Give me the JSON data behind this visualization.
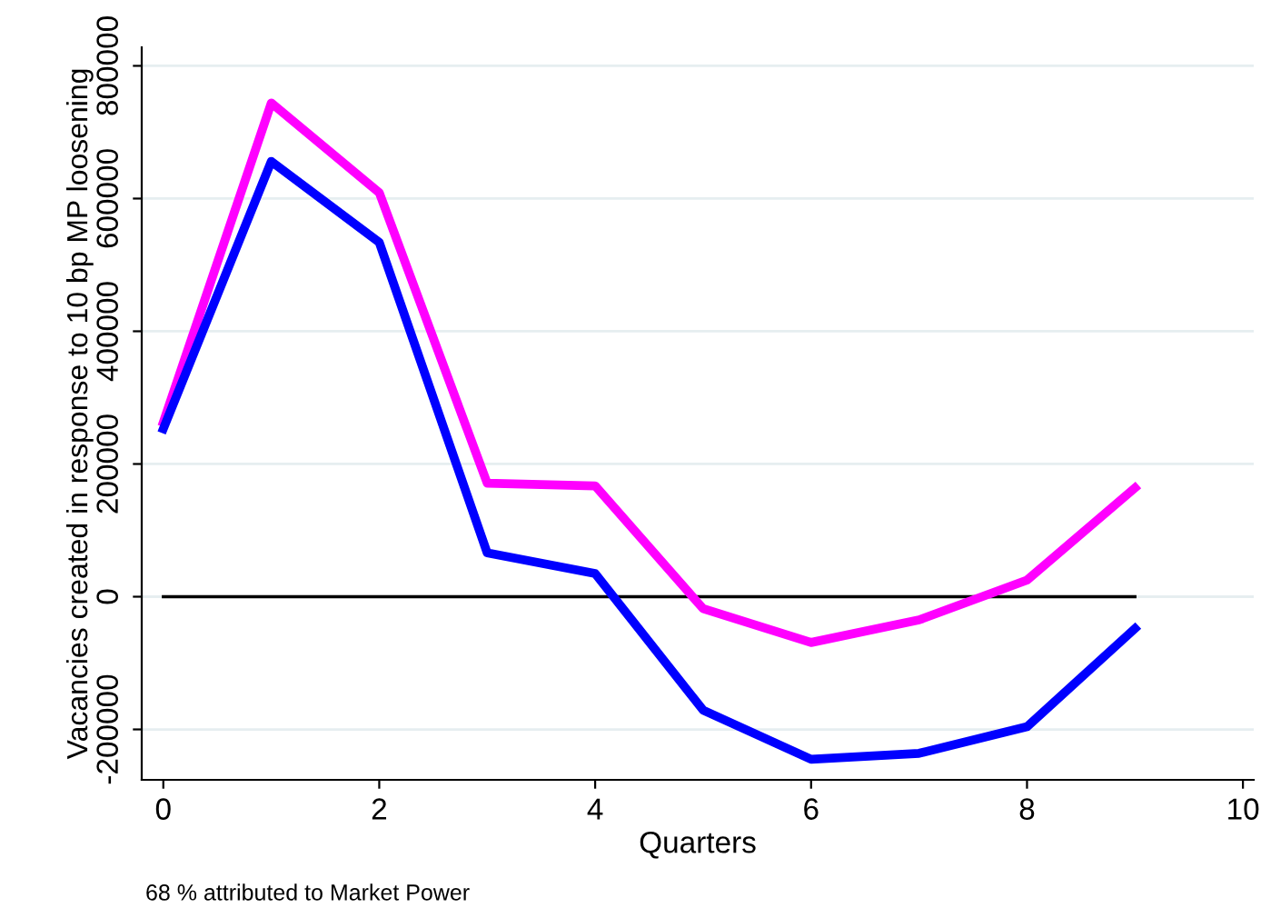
{
  "chart_data": {
    "type": "line",
    "xlabel": "Quarters",
    "ylabel": "Vacancies created in response to 10 bp MP loosening",
    "x": [
      0,
      1,
      2,
      3,
      4,
      5,
      6,
      7,
      8,
      9
    ],
    "series": [
      {
        "color": "#ff00ff",
        "values": [
          263000,
          744000,
          609000,
          171000,
          167000,
          -18000,
          -69000,
          -35000,
          25000,
          164000
        ]
      },
      {
        "color": "#0000ff",
        "values": [
          253000,
          656000,
          534000,
          66000,
          35000,
          -171000,
          -245000,
          -236000,
          -196000,
          -48000
        ]
      },
      {
        "color": "#000000",
        "x": [
          0,
          9
        ],
        "values": [
          0,
          0
        ]
      }
    ],
    "xlim": [
      -0.2,
      10.1
    ],
    "xticks": [
      0,
      2,
      4,
      6,
      8,
      10
    ],
    "ylim": [
      -276000,
      828000
    ],
    "yticks": [
      {
        "value": -200000,
        "label": "-200000"
      },
      0,
      200000,
      400000,
      600000,
      800000
    ],
    "grid": "y",
    "marker": "none",
    "line_style": "solid",
    "annotations": [
      "68 % attributed to Market Power"
    ]
  }
}
